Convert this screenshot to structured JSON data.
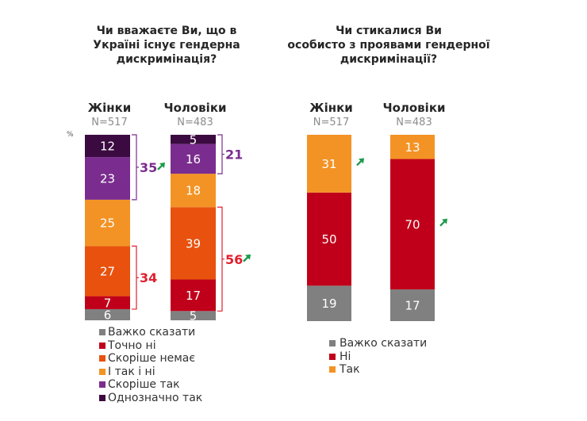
{
  "colors": {
    "hard_to_say": "#808080",
    "definitely_no": "#c0001a",
    "rather_no": "#e8520e",
    "yes_and_no": "#f39325",
    "rather_yes": "#7a2d8e",
    "definitely_yes": "#3b0a40",
    "green_arrow": "#1e9a4b",
    "bracket_purple": "#7a2d8e",
    "bracket_red": "#e02030"
  },
  "chart_data": [
    {
      "type": "bar",
      "stacked": true,
      "title": "Чи вважаєте Ви, що в Україні існує гендерна дискримінація?",
      "title_lines": [
        "Чи вважаєте Ви, що в",
        "Україні існує гендерна",
        "дискримінація?"
      ],
      "unit_label": "%",
      "categories": [
        "Жінки",
        "Чоловіки"
      ],
      "sample_sizes": [
        "N=517",
        "N=483"
      ],
      "series": [
        {
          "name": "Важко сказати",
          "color_key": "hard_to_say",
          "values": [
            6,
            5
          ]
        },
        {
          "name": "Точно ні",
          "color_key": "definitely_no",
          "values": [
            7,
            17
          ]
        },
        {
          "name": "Скоріше немає",
          "color_key": "rather_no",
          "values": [
            27,
            39
          ]
        },
        {
          "name": "І так і ні",
          "color_key": "yes_and_no",
          "values": [
            25,
            18
          ]
        },
        {
          "name": "Скоріше так",
          "color_key": "rather_yes",
          "values": [
            23,
            16
          ]
        },
        {
          "name": "Однозначно так",
          "color_key": "definitely_yes",
          "values": [
            12,
            5
          ]
        }
      ],
      "annotations": [
        {
          "bar": 0,
          "label": "35",
          "from_series": 4,
          "to_series": 5,
          "color_key": "bracket_purple",
          "arrow_up": true
        },
        {
          "bar": 0,
          "label": "34",
          "from_series": 1,
          "to_series": 2,
          "color_key": "bracket_red",
          "arrow_up": false
        },
        {
          "bar": 1,
          "label": "21",
          "from_series": 4,
          "to_series": 5,
          "color_key": "bracket_purple",
          "arrow_up": false
        },
        {
          "bar": 1,
          "label": "56",
          "from_series": 1,
          "to_series": 2,
          "color_key": "bracket_red",
          "arrow_up": true
        }
      ],
      "ylim": [
        0,
        100
      ]
    },
    {
      "type": "bar",
      "stacked": true,
      "title": "Чи стикалися Ви особисто з проявами гендерної дискримінації?",
      "title_lines": [
        "Чи стикалися Ви",
        "особисто з проявами  гендерної",
        "дискримінації?"
      ],
      "categories": [
        "Жінки",
        "Чоловіки"
      ],
      "sample_sizes": [
        "N=517",
        "N=483"
      ],
      "series": [
        {
          "name": "Важко сказати",
          "color_key": "hard_to_say",
          "values": [
            19,
            17
          ]
        },
        {
          "name": "Ні",
          "color_key": "definitely_no",
          "values": [
            50,
            70
          ]
        },
        {
          "name": "Так",
          "color_key": "yes_and_no",
          "values": [
            31,
            13
          ]
        }
      ],
      "arrows": [
        {
          "bar": 0,
          "series": 2
        },
        {
          "bar": 1,
          "series": 1
        }
      ],
      "ylim": [
        0,
        100
      ]
    }
  ]
}
